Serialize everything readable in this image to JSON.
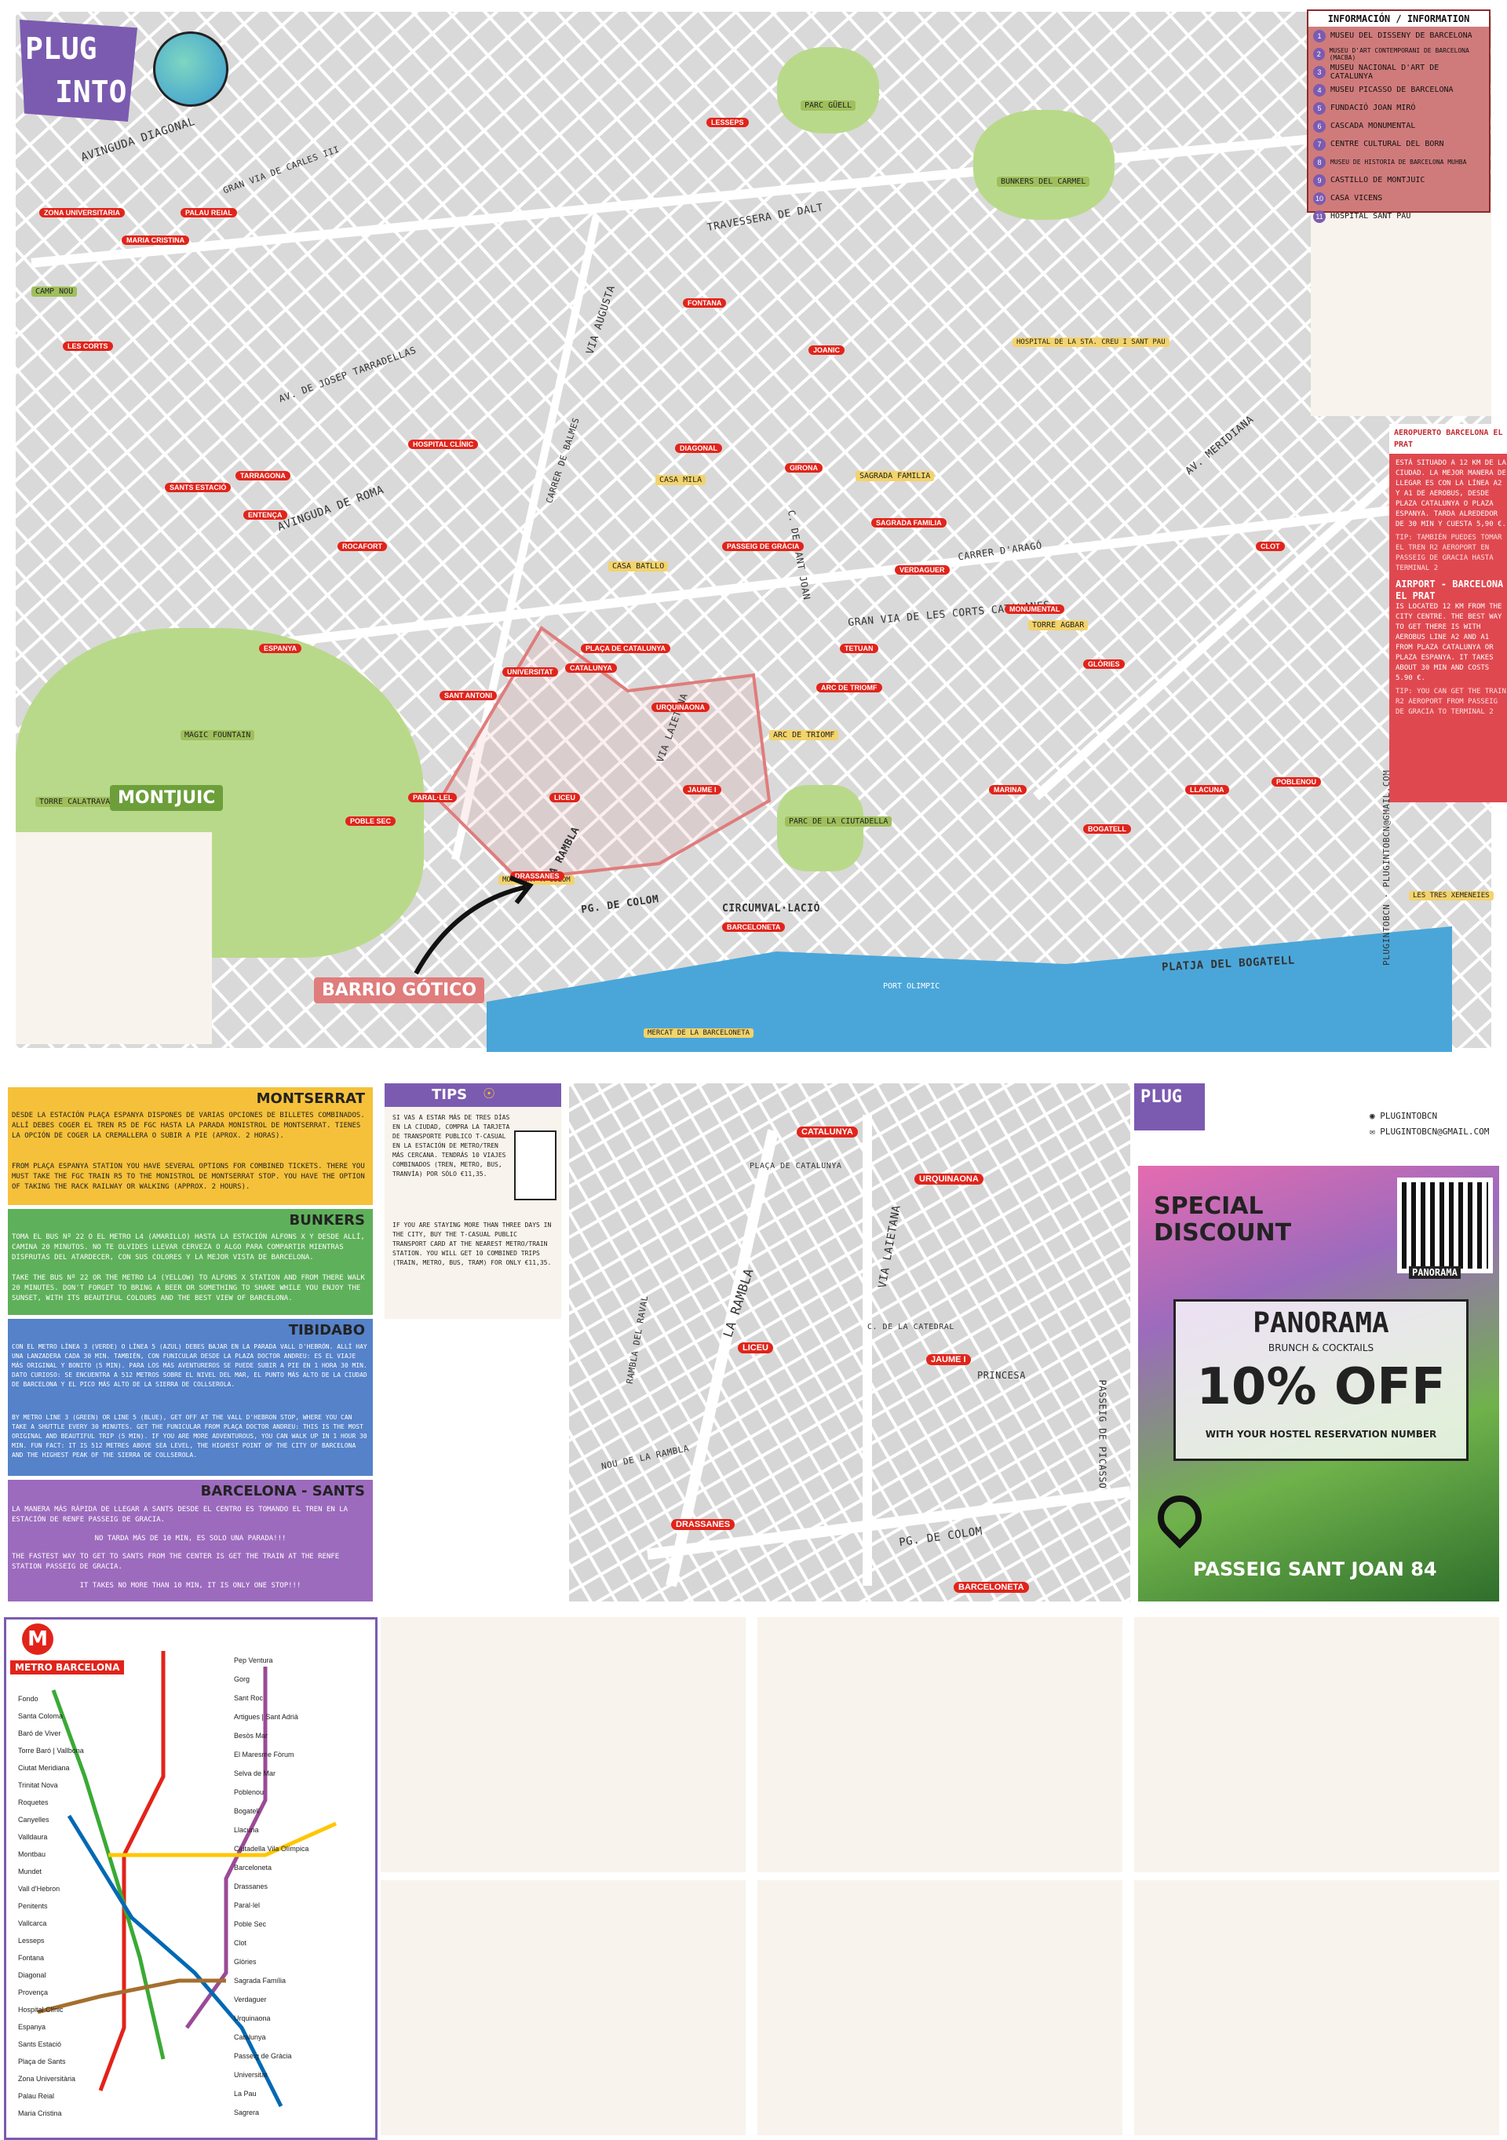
{
  "brand": {
    "logo_line1": "PLUG",
    "logo_line2": "INTO"
  },
  "info": {
    "title": "INFORMACIÓN / INFORMATION",
    "items": [
      {
        "n": "1",
        "label": "MUSEU DEL DISSENY DE BARCELONA"
      },
      {
        "n": "2",
        "label": "MUSEU D'ART CONTEMPORANI DE BARCELONA (MACBA)"
      },
      {
        "n": "3",
        "label": "MUSEU NACIONAL D'ART DE CATALUNYA"
      },
      {
        "n": "4",
        "label": "MUSEU PICASSO DE BARCELONA"
      },
      {
        "n": "5",
        "label": "FUNDACIÓ JOAN MIRÓ"
      },
      {
        "n": "6",
        "label": "CASCADA MONUMENTAL"
      },
      {
        "n": "7",
        "label": "CENTRE CULTURAL DEL BORN"
      },
      {
        "n": "8",
        "label": "MUSEU DE HISTORIA DE BARCELONA MUHBA"
      },
      {
        "n": "9",
        "label": "CASTILLO DE MONTJUIC"
      },
      {
        "n": "10",
        "label": "CASA VICENS"
      },
      {
        "n": "11",
        "label": "HOSPITAL SANT PAU"
      }
    ]
  },
  "airport": {
    "title": "AEROPUERTO BARCELONA EL PRAT",
    "text_es": "ESTÁ SITUADO A 12 KM DE LA CIUDAD. LA MEJOR MANERA DE LLEGAR ES CON LA LÍNEA A2 Y A1 DE AEROBUS, DESDE PLAZA CATALUNYA O PLAZA ESPANYA. TARDA ALREDEDOR DE 30 MIN Y CUESTA 5,90 €.",
    "tip_es": "TIP: TAMBIÉN PUEDES TOMAR EL TREN R2 AEROPORT EN PASSEIG DE GRACIA HASTA TERMINAL 2",
    "title_en": "AIRPORT - BARCELONA EL PRAT",
    "text_en": "IS LOCATED 12 KM FROM THE CITY CENTRE. THE BEST WAY TO GET THERE IS WITH AEROBUS LINE A2 AND A1 FROM PLAZA CATALUNYA OR PLAZA ESPANYA. IT TAKES ABOUT 30 MIN AND COSTS 5.90 €.",
    "tip_en": "TIP: YOU CAN GET THE TRAIN R2 AEROPORT FROM PASSEIG DE GRACIA TO TERMINAL 2"
  },
  "map_top": {
    "neighborhoods": {
      "montjuic": "MONTJUIC",
      "gotic": "BARRIO GÓTICO"
    },
    "streets": [
      "AVINGUDA DIAGONAL",
      "AVINGUDA DE ROMA",
      "GRAN VIA DE LES CORTS CATALANES",
      "CARRER D'ARAGÓ",
      "TRAVESSERA DE DALT",
      "VIA AUGUSTA",
      "AV. MERIDIANA",
      "PLATJA DEL BOGATELL",
      "CIRCUMVAL·LACIÓ",
      "PG. DE COLOM",
      "LA RAMBLA",
      "VIA LAIETANA",
      "C. DE SANT JOAN",
      "AV. DE JOSEP TARRADELLAS",
      "GRAN VIA DE CARLES III",
      "CARRER DE BALMES"
    ],
    "landmarks": [
      "PARC GÜELL",
      "BUNKERS DEL CARMEL",
      "SAGRADA FAMILIA",
      "CASA MILA",
      "CASA BATLLO",
      "TORRE AGBAR",
      "PARC DE LA CIUTADELLA",
      "ARC DE TRIOMF",
      "MAGIC FOUNTAIN",
      "TORRE CALATRAVA",
      "CAMP NOU",
      "HOSPITAL DE LA STA. CREU I SANT PAU",
      "PORT OLIMPIC",
      "MERCAT DE LA BARCELONETA",
      "LES TRES XEMENEIES",
      "MONUMENT A COLOM"
    ],
    "metro": [
      "DIAGONAL",
      "PASSEIG DE GRÀCIA",
      "CATALUNYA",
      "URQUINAONA",
      "ARC DE TRIOMF",
      "SAGRADA FAMILIA",
      "MONUMENTAL",
      "GLÒRIES",
      "MARINA",
      "BOGATELL",
      "SANTS ESTACIÓ",
      "ESPANYA",
      "BARCELONETA",
      "JAUME I",
      "LICEU",
      "DRASSANES",
      "PARAL·LEL",
      "POBLE SEC",
      "PLAÇA DE CATALUNYA",
      "FONTANA",
      "JOANIC",
      "LESSEPS",
      "HOSPITAL CLÍNIC",
      "TARRAGONA",
      "ROCAFORT",
      "ENTENÇA",
      "LES CORTS",
      "MARIA CRISTINA",
      "PALAU REIAL",
      "ZONA UNIVERSITARIA",
      "VERDAGUER",
      "GIRONA",
      "TETUAN",
      "CLOT",
      "POBLENOU",
      "LLACUNA",
      "SANT ANTONI",
      "UNIVERSITAT"
    ],
    "contact": "PLUGINTOBCN · PLUGINTOBCN@GMAIL.COM"
  },
  "montserrat": {
    "title": "MONTSERRAT",
    "es": "DESDE LA ESTACIÓN PLAÇA ESPANYA DISPONES DE VARIAS OPCIONES DE BILLETES COMBINADOS. ALLÍ DEBES COGER EL TREN R5 DE FGC HASTA LA PARADA MONISTROL DE MONTSERRAT. TIENES LA OPCIÓN DE COGER LA CREMALLERA O SUBIR A PIE (APROX. 2 HORAS).",
    "en": "FROM PLAÇA ESPANYA STATION YOU HAVE SEVERAL OPTIONS FOR COMBINED TICKETS. THERE YOU MUST TAKE THE FGC TRAIN R5 TO THE MONISTROL DE MONTSERRAT STOP. YOU HAVE THE OPTION OF TAKING THE RACK RAILWAY OR WALKING (APPROX. 2 HOURS)."
  },
  "bunkers": {
    "title": "BUNKERS",
    "es": "TOMA EL BUS Nº 22 O EL METRO L4 (AMARILLO) HASTA LA ESTACIÓN ALFONS X Y DESDE ALLÍ, CAMINA 20 MINUTOS. NO TE OLVIDES LLEVAR CERVEZA O ALGO PARA COMPARTIR MIENTRAS DISFRUTAS DEL ATARDECER, CON SUS COLORES Y LA MEJOR VISTA DE BARCELONA.",
    "en": "TAKE THE BUS Nº 22 OR THE METRO L4 (YELLOW) TO ALFONS X STATION AND FROM THERE WALK 20 MINUTES. DON'T FORGET TO BRING A BEER OR SOMETHING TO SHARE WHILE YOU ENJOY THE SUNSET, WITH ITS BEAUTIFUL COLOURS AND THE BEST VIEW OF BARCELONA."
  },
  "tibidabo": {
    "title": "TIBIDABO",
    "es": "CON EL METRO LÍNEA 3 (VERDE) O LÍNEA 5 (AZUL) DEBES BAJAR EN LA PARADA VALL D'HEBRÓN. ALLÍ HAY UNA LANZADERA CADA 30 MIN. TAMBIÉN, CON FUNICULAR DESDE LA PLAZA DOCTOR ANDREU: ES EL VIAJE MÁS ORIGINAL Y BONITO (5 MIN). PARA LOS MÁS AVENTUREROS SE PUEDE SUBIR A PIE EN 1 HORA 30 MIN. DATO CURIOSO: SE ENCUENTRA A 512 METROS SOBRE EL NIVEL DEL MAR, EL PUNTO MÁS ALTO DE LA CIUDAD DE BARCELONA Y EL PICO MÁS ALTO DE LA SIERRA DE COLLSEROLA.",
    "en": "BY METRO LINE 3 (GREEN) OR LINE 5 (BLUE), GET OFF AT THE VALL D'HEBRON STOP, WHERE YOU CAN TAKE A SHUTTLE EVERY 30 MINUTES. GET THE FUNICULAR FROM PLAÇA DOCTOR ANDREU: THIS IS THE MOST ORIGINAL AND BEAUTIFUL TRIP (5 MIN). IF YOU ARE MORE ADVENTUROUS, YOU CAN WALK UP IN 1 HOUR 30 MIN. FUN FACT: IT IS 512 METRES ABOVE SEA LEVEL, THE HIGHEST POINT OF THE CITY OF BARCELONA AND THE HIGHEST PEAK OF THE SIERRA DE COLLSEROLA."
  },
  "sants": {
    "title": "BARCELONA - SANTS",
    "es": "LA MANERA MÁS RÁPIDA DE LLEGAR A SANTS DESDE EL CENTRO ES TOMANDO EL TREN EN LA ESTACIÓN DE RENFE PASSEIG DE GRACIA.",
    "es2": "NO TARDA MÁS DE 10 MIN, ES SOLO UNA PARADA!!!",
    "en": "THE FASTEST WAY TO GET TO SANTS FROM THE CENTER IS GET THE TRAIN AT THE RENFE STATION PASSEIG DE GRACIA.",
    "en2": "IT TAKES NO MORE THAN 10 MIN, IT IS ONLY ONE STOP!!!"
  },
  "tips": {
    "title": "TIPS",
    "es": "SI VAS A ESTAR MÁS DE TRES DÍAS EN LA CIUDAD, COMPRA LA TARJETA DE TRANSPORTE PUBLICO T-CASUAL EN LA ESTACIÓN DE METRO/TREN MÁS CERCANA. TENDRÁS 10 VIAJES COMBINADOS (TREN, METRO, BUS, TRANVÍA) POR SÓLO €11,35.",
    "en": "IF YOU ARE STAYING MORE THAN THREE DAYS IN THE CITY, BUY THE T-CASUAL PUBLIC TRANSPORT CARD AT THE NEAREST METRO/TRAIN STATION. YOU WILL GET 10 COMBINED TRIPS (TRAIN, METRO, BUS, TRAM) FOR ONLY €11,35."
  },
  "map_zoom": {
    "streets": [
      "LA RAMBLA",
      "VIA LAIETANA",
      "PG. DE COLOM",
      "PASSEIG DE PICASSO",
      "PRINCESA",
      "RAMBLA DEL RAVAL",
      "NOU DE LA RAMBLA",
      "PLAÇA DE CATALUNYA",
      "C. DE LA CATEDRAL"
    ],
    "metro": [
      "CATALUNYA",
      "URQUINAONA",
      "LICEU",
      "JAUME I",
      "DRASSANES",
      "BARCELONETA"
    ]
  },
  "promo": {
    "instagram": "PLUGINTOBCN",
    "email": "PLUGINTOBCN@GMAIL.COM",
    "headline": "SPECIAL DISCOUNT",
    "venue": "PANORAMA",
    "venue_sub": "BRUNCH & COCKTAILS",
    "discount": "10% OFF",
    "condition": "WITH YOUR HOSTEL RESERVATION NUMBER",
    "address": "PASSEIG SANT JOAN 84",
    "qr_label": "PANORAMA"
  },
  "metro_map": {
    "title": "METRO BARCELONA",
    "stations_left": [
      "Fondo",
      "Santa Coloma",
      "Baró de Viver",
      "Torre Baró | Vallbona",
      "Ciutat Meridiana",
      "Trinitat Nova",
      "Roquetes",
      "Canyelles",
      "Valldaura",
      "Montbau",
      "Mundet",
      "Vall d'Hebron",
      "Penitents",
      "Vallcarca",
      "Lesseps",
      "Fontana",
      "Diagonal",
      "Provença",
      "Hospital Clínic",
      "Espanya",
      "Sants Estació",
      "Plaça de Sants",
      "Zona Universitària",
      "Palau Reial",
      "Maria Cristina"
    ],
    "stations_right": [
      "Pep Ventura",
      "Gorg",
      "Sant Roc",
      "Artigues | Sant Adrià",
      "Besòs Mar",
      "El Maresme Fòrum",
      "Selva de Mar",
      "Poblenou",
      "Bogatell",
      "Llacuna",
      "Ciutadella Vila Olímpica",
      "Barceloneta",
      "Drassanes",
      "Paral·lel",
      "Poble Sec",
      "Clot",
      "Glòries",
      "Sagrada Família",
      "Verdaguer",
      "Urquinaona",
      "Catalunya",
      "Passeig de Gràcia",
      "Universitat",
      "La Pau",
      "Sagrera"
    ],
    "line_colors": [
      "#e2231a",
      "#9b4a97",
      "#3aaa35",
      "#ffc600",
      "#0069b4",
      "#a56f2d"
    ]
  }
}
